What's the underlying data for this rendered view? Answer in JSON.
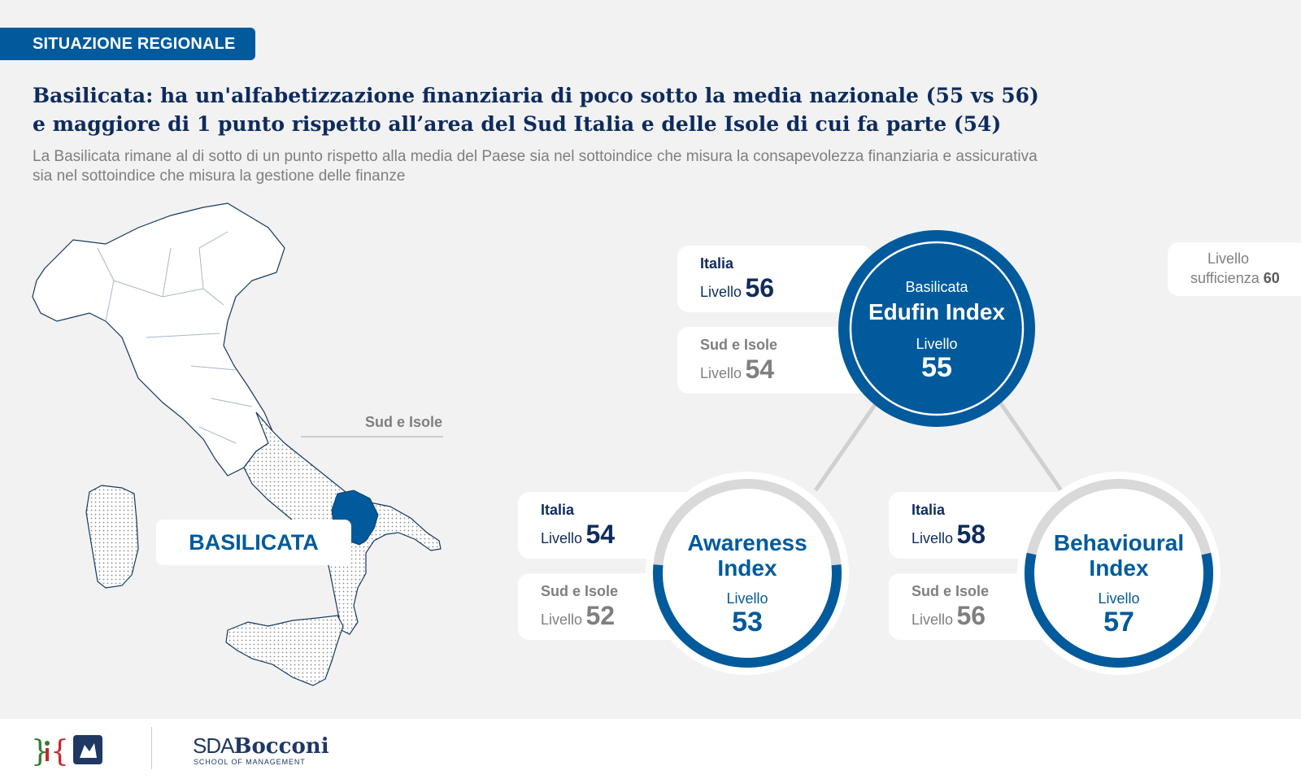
{
  "header": {
    "section_tag": "SITUAZIONE REGIONALE",
    "title_line1": "Basilicata: ha un'alfabetizzazione finanziaria di poco sotto la media nazionale (55 vs 56)",
    "title_line2": "e maggiore di 1 punto rispetto all’area del Sud Italia e delle Isole di cui fa parte (54)",
    "subtitle_line1": "La Basilicata rimane al di sotto di un punto rispetto alla media del Paese sia nel sottoindice che misura la consapevolezza finanziaria e assicurativa",
    "subtitle_line2": "sia nel sottoindice che misura la gestione delle finanze"
  },
  "map": {
    "area_label": "Sud e Isole",
    "region_label": "BASILICATA",
    "region_color": "#005a9c"
  },
  "threshold": {
    "label_line1": "Livello",
    "label_line2": "sufficienza",
    "value": "60"
  },
  "edufin": {
    "region": "Basilicata",
    "name": "Edufin Index",
    "level_label": "Livello",
    "value": "55",
    "italia": {
      "label": "Italia",
      "level_label": "Livello",
      "value": "56"
    },
    "sud": {
      "label": "Sud e Isole",
      "level_label": "Livello",
      "value": "54"
    }
  },
  "awareness": {
    "name_line1": "Awareness",
    "name_line2": "Index",
    "level_label": "Livello",
    "value": "53",
    "gauge_fraction": 0.53,
    "italia": {
      "label": "Italia",
      "level_label": "Livello",
      "value": "54"
    },
    "sud": {
      "label": "Sud e Isole",
      "level_label": "Livello",
      "value": "52"
    }
  },
  "behavioural": {
    "name_line1": "Behavioural",
    "name_line2": "Index",
    "level_label": "Livello",
    "value": "57",
    "gauge_fraction": 0.57,
    "italia": {
      "label": "Italia",
      "level_label": "Livello",
      "value": "58"
    },
    "sud": {
      "label": "Sud e Isole",
      "level_label": "Livello",
      "value": "56"
    }
  },
  "colors": {
    "primary": "#005a9c",
    "dark_text": "#0e2b5c",
    "grey_text": "#7f7f7f",
    "ring_grey": "#d9d9d9"
  },
  "footer": {
    "logo_icons": [
      "edufin-logo-icon",
      "mefop-logo-icon"
    ],
    "partner_logo_text_sda": "SDA",
    "partner_logo_text_bocconi": "Bocconi",
    "partner_logo_subtext": "SCHOOL OF MANAGEMENT"
  }
}
